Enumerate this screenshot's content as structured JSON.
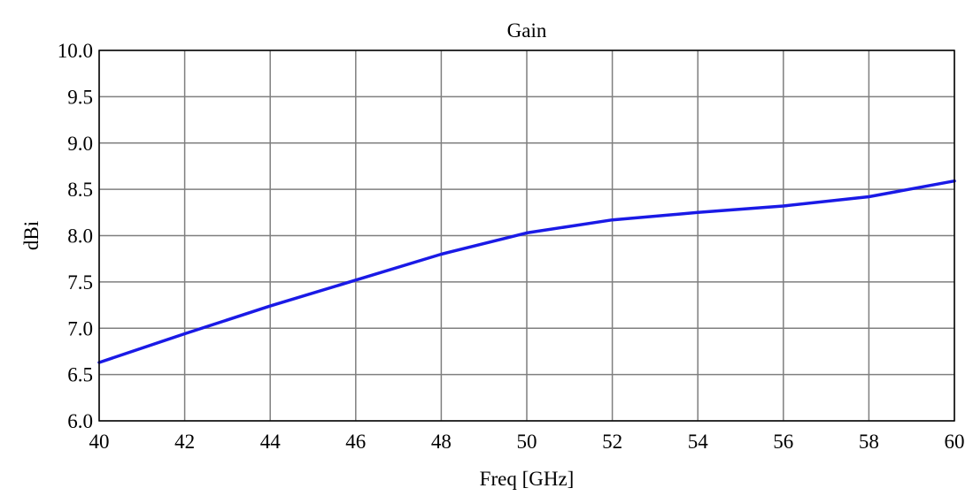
{
  "chart_data": {
    "type": "line",
    "title": "Gain",
    "xlabel": "Freq [GHz]",
    "ylabel": "dBi",
    "xlim": [
      40,
      60
    ],
    "ylim": [
      6.0,
      10.0
    ],
    "x_ticks": [
      40,
      42,
      44,
      46,
      48,
      50,
      52,
      54,
      56,
      58,
      60
    ],
    "x_tick_labels": [
      "40",
      "42",
      "44",
      "46",
      "48",
      "50",
      "52",
      "54",
      "56",
      "58",
      "60"
    ],
    "y_ticks": [
      6.0,
      6.5,
      7.0,
      7.5,
      8.0,
      8.5,
      9.0,
      9.5,
      10.0
    ],
    "y_tick_labels": [
      "6.0",
      "6.5",
      "7.0",
      "7.5",
      "8.0",
      "8.5",
      "9.0",
      "9.5",
      "10.0"
    ],
    "grid": true,
    "series": [
      {
        "color": "#1a1ae6",
        "x": [
          40,
          42,
          44,
          46,
          48,
          50,
          52,
          54,
          56,
          58,
          60
        ],
        "y": [
          6.63,
          6.94,
          7.24,
          7.52,
          7.8,
          8.03,
          8.17,
          8.25,
          8.32,
          8.42,
          8.59
        ]
      }
    ]
  }
}
